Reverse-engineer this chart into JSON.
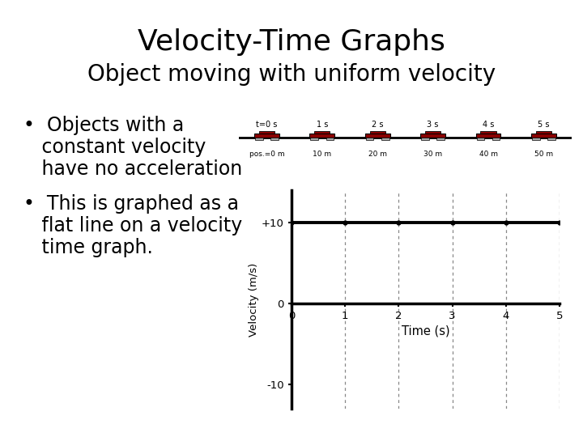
{
  "title": "Velocity-Time Graphs",
  "subtitle": "Object moving with uniform velocity",
  "bullet1_line1": "•  Objects with a",
  "bullet1_line2": "   constant velocity",
  "bullet1_line3": "   have no acceleration",
  "bullet2_line1": "•  This is graphed as a",
  "bullet2_line2": "   flat line on a velocity",
  "bullet2_line3": "   time graph.",
  "bg_color": "#ffffff",
  "title_fontsize": 26,
  "subtitle_fontsize": 20,
  "bullet_fontsize": 17,
  "divider_color": "#999999",
  "time_labels": [
    "t=0 s",
    "1 s",
    "2 s",
    "3 s",
    "4 s",
    "5 s"
  ],
  "pos_labels": [
    "pos.=0 m",
    "10 m",
    "20 m",
    "30 m",
    "40 m",
    "50 m"
  ],
  "car_color": "#8b0000",
  "car_positions": [
    0,
    1,
    2,
    3,
    4,
    5
  ],
  "graph_x": [
    0,
    1,
    2,
    3,
    4,
    5
  ],
  "graph_y": [
    10,
    10,
    10,
    10,
    10,
    10
  ],
  "graph_y0": [
    0,
    0,
    0,
    0,
    0,
    0
  ],
  "graph_xlim": [
    0,
    5
  ],
  "graph_ylim": [
    -13,
    14
  ],
  "graph_yticks": [
    -10,
    0,
    10
  ],
  "graph_ytick_labels": [
    "-10",
    "0",
    "+10"
  ],
  "graph_xticks": [
    0,
    1,
    2,
    3,
    4,
    5
  ],
  "graph_xlabel": "Time (s)",
  "graph_ylabel": "Velocity (m/s)",
  "line_color": "#000000",
  "grid_color": "#888888"
}
